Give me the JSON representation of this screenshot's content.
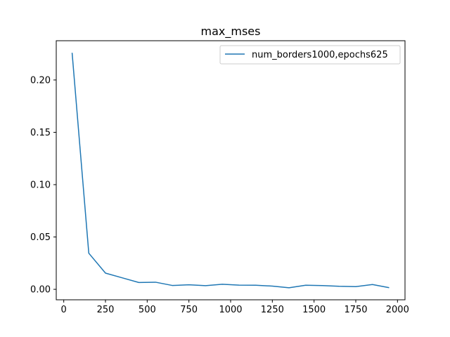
{
  "chart_data": {
    "type": "line",
    "title": "max_mses",
    "xlabel": "",
    "ylabel": "",
    "xlim": [
      -45,
      2045
    ],
    "ylim": [
      -0.01,
      0.2375
    ],
    "xticks": [
      0,
      250,
      500,
      750,
      1000,
      1250,
      1500,
      1750,
      2000
    ],
    "yticks": [
      0.0,
      0.05,
      0.1,
      0.15,
      0.2
    ],
    "ytick_labels": [
      "0.00",
      "0.05",
      "0.10",
      "0.15",
      "0.20"
    ],
    "grid": false,
    "legend": {
      "placement": "top-right"
    },
    "series": [
      {
        "name": "num_borders1000,epochs625",
        "color": "#1f77b4",
        "x": [
          50,
          150,
          250,
          350,
          450,
          550,
          650,
          750,
          850,
          950,
          1050,
          1150,
          1250,
          1350,
          1450,
          1550,
          1650,
          1750,
          1850,
          1950
        ],
        "values": [
          0.226,
          0.0345,
          0.0155,
          0.011,
          0.0065,
          0.0068,
          0.0037,
          0.0043,
          0.0035,
          0.0048,
          0.004,
          0.0039,
          0.0031,
          0.0015,
          0.0039,
          0.0036,
          0.0029,
          0.0026,
          0.0046,
          0.0016
        ]
      }
    ]
  }
}
